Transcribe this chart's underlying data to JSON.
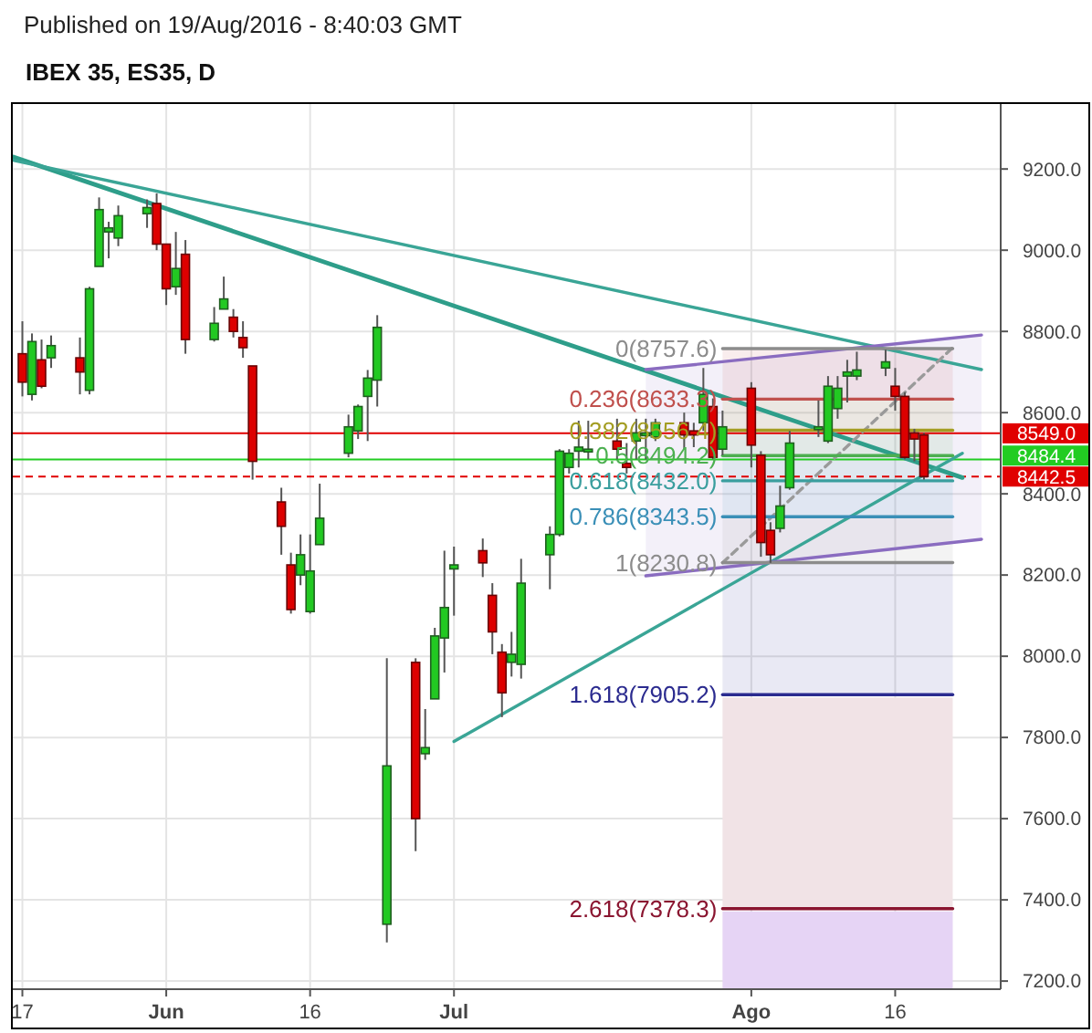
{
  "chart_data": {
    "type": "candlestick",
    "title": "IBEX 35, ES35, D",
    "annotations": [
      "Published on 19/Aug/2016 - 8:40:03 GMT"
    ],
    "x": [
      "2016-05-17",
      "2016-05-18",
      "2016-05-19",
      "2016-05-20",
      "2016-05-23",
      "2016-05-24",
      "2016-05-25",
      "2016-05-26",
      "2016-05-27",
      "2016-05-30",
      "2016-05-31",
      "2016-06-01",
      "2016-06-02",
      "2016-06-03",
      "2016-06-06",
      "2016-06-07",
      "2016-06-08",
      "2016-06-09",
      "2016-06-10",
      "2016-06-13",
      "2016-06-14",
      "2016-06-15",
      "2016-06-16",
      "2016-06-17",
      "2016-06-20",
      "2016-06-21",
      "2016-06-22",
      "2016-06-23",
      "2016-06-24",
      "2016-06-27",
      "2016-06-28",
      "2016-06-29",
      "2016-06-30",
      "2016-07-01",
      "2016-07-04",
      "2016-07-05",
      "2016-07-06",
      "2016-07-07",
      "2016-07-08",
      "2016-07-11",
      "2016-07-12",
      "2016-07-13",
      "2016-07-14",
      "2016-07-15",
      "2016-07-18",
      "2016-07-19",
      "2016-07-20",
      "2016-07-21",
      "2016-07-22",
      "2016-07-25",
      "2016-07-26",
      "2016-07-27",
      "2016-07-28",
      "2016-07-29",
      "2016-08-01",
      "2016-08-02",
      "2016-08-03",
      "2016-08-04",
      "2016-08-05",
      "2016-08-08",
      "2016-08-09",
      "2016-08-10",
      "2016-08-11",
      "2016-08-12",
      "2016-08-15",
      "2016-08-16",
      "2016-08-17",
      "2016-08-18",
      "2016-08-19"
    ],
    "ohlc": [
      [
        8745,
        8825,
        8640,
        8675
      ],
      [
        8645,
        8795,
        8630,
        8775
      ],
      [
        8730,
        8780,
        8660,
        8665
      ],
      [
        8735,
        8790,
        8710,
        8765
      ],
      [
        8735,
        8785,
        8645,
        8700
      ],
      [
        8655,
        8910,
        8645,
        8905
      ],
      [
        8960,
        9130,
        8960,
        9100
      ],
      [
        9045,
        9070,
        8980,
        9055
      ],
      [
        9030,
        9110,
        9010,
        9085
      ],
      [
        9090,
        9125,
        9055,
        9105
      ],
      [
        9115,
        9140,
        9000,
        9015
      ],
      [
        9015,
        9015,
        8865,
        8905
      ],
      [
        8910,
        9045,
        8890,
        8955
      ],
      [
        8990,
        9025,
        8745,
        8780
      ],
      [
        8780,
        8860,
        8775,
        8820
      ],
      [
        8855,
        8935,
        8855,
        8880
      ],
      [
        8835,
        8855,
        8785,
        8800
      ],
      [
        8785,
        8825,
        8735,
        8760
      ],
      [
        8715,
        8715,
        8435,
        8480
      ],
      [
        8380,
        8415,
        8250,
        8320
      ],
      [
        8225,
        8255,
        8105,
        8115
      ],
      [
        8200,
        8300,
        8175,
        8250
      ],
      [
        8110,
        8300,
        8105,
        8210
      ],
      [
        8275,
        8425,
        8275,
        8340
      ],
      [
        8500,
        8595,
        8490,
        8565
      ],
      [
        8555,
        8620,
        8535,
        8615
      ],
      [
        8640,
        8705,
        8530,
        8685
      ],
      [
        8680,
        8840,
        8615,
        8810
      ],
      [
        7340,
        7995,
        7295,
        7730
      ],
      [
        7985,
        7995,
        7520,
        7600
      ],
      [
        7760,
        7870,
        7745,
        7775
      ],
      [
        7895,
        8070,
        7895,
        8050
      ],
      [
        8045,
        8260,
        7960,
        8120
      ],
      [
        8215,
        8270,
        8100,
        8225
      ],
      [
        8260,
        8290,
        8195,
        8230
      ],
      [
        8150,
        8180,
        8005,
        8060
      ],
      [
        8010,
        8030,
        7850,
        7910
      ],
      [
        7985,
        8060,
        7950,
        8005
      ],
      [
        7980,
        8240,
        7945,
        8180
      ],
      [
        8250,
        8320,
        8165,
        8300
      ],
      [
        8300,
        8510,
        8295,
        8505
      ],
      [
        8465,
        8510,
        8450,
        8500
      ],
      [
        8505,
        8580,
        8465,
        8515
      ],
      [
        8505,
        8580,
        8485,
        8510
      ],
      [
        8530,
        8585,
        8485,
        8510
      ],
      [
        8475,
        8525,
        8450,
        8465
      ],
      [
        8530,
        8585,
        8485,
        8550
      ],
      [
        8545,
        8585,
        8485,
        8550
      ],
      [
        8540,
        8585,
        8530,
        8575
      ],
      [
        8575,
        8600,
        8510,
        8545
      ],
      [
        8555,
        8575,
        8515,
        8545
      ],
      [
        8575,
        8710,
        8555,
        8645
      ],
      [
        8615,
        8635,
        8485,
        8490
      ],
      [
        8510,
        8605,
        8495,
        8565
      ],
      [
        8660,
        8675,
        8465,
        8520
      ],
      [
        8495,
        8505,
        8245,
        8280
      ],
      [
        8310,
        8330,
        8230,
        8250
      ],
      [
        8315,
        8420,
        8305,
        8370
      ],
      [
        8415,
        8555,
        8410,
        8525
      ],
      [
        8560,
        8630,
        8540,
        8565
      ],
      [
        8530,
        8690,
        8525,
        8665
      ],
      [
        8610,
        8690,
        8585,
        8660
      ],
      [
        8690,
        8730,
        8625,
        8700
      ],
      [
        8690,
        8750,
        8680,
        8705
      ],
      [
        8710,
        8755,
        8690,
        8725
      ],
      [
        8665,
        8710,
        8605,
        8640
      ],
      [
        8640,
        8650,
        8485,
        8490
      ],
      [
        8550,
        8560,
        8480,
        8535
      ],
      [
        8545,
        8550,
        8435,
        8442.5
      ]
    ],
    "series": [
      {
        "type": "line",
        "color": "#2e9e8a",
        "x": [
          "2016-05-16",
          "2016-08-23"
        ],
        "values": [
          9230,
          8440
        ]
      },
      {
        "type": "line",
        "color": "#3aa596",
        "x": [
          "2016-05-16",
          "2016-08-25"
        ],
        "values": [
          9222,
          8706
        ]
      },
      {
        "type": "line",
        "color": "#3aa596",
        "x": [
          "2016-07-01",
          "2016-08-23"
        ],
        "values": [
          7790,
          8500
        ]
      },
      {
        "type": "line",
        "color": "#8a6cc0",
        "x": [
          "2016-07-21",
          "2016-08-25"
        ],
        "values": [
          8706,
          8791
        ],
        "lower": [
          8198,
          8288
        ],
        "upper": [
          8706,
          8791
        ]
      },
      {
        "type": "line",
        "color": "#8a6cc0",
        "x": [
          "2016-07-21",
          "2016-08-25"
        ],
        "values": [
          8198,
          8288
        ]
      },
      {
        "type": "line",
        "color": "#9a9a9a",
        "line_style": "dashed",
        "x": [
          "2016-07-29",
          "2016-08-22"
        ],
        "values": [
          8230,
          8760
        ]
      },
      {
        "type": "line",
        "name": "0(8757.6)",
        "color": "#8c8c8c",
        "x": [
          "2016-07-29",
          "2016-08-22"
        ],
        "values": [
          8757.6,
          8757.6
        ]
      },
      {
        "type": "line",
        "name": "0.236(8633.3)",
        "color": "#c0504d",
        "x": [
          "2016-07-29",
          "2016-08-22"
        ],
        "values": [
          8633.3,
          8633.3
        ],
        "lower": [
          8633.3,
          8633.3
        ],
        "upper": [
          8757.6,
          8757.6
        ]
      },
      {
        "type": "line",
        "name": "0.382(8556.4)",
        "color": "#a39d22",
        "x": [
          "2016-07-29",
          "2016-08-22"
        ],
        "values": [
          8556.4,
          8556.4
        ],
        "lower": [
          8556.4,
          8556.4
        ],
        "upper": [
          8633.3,
          8633.3
        ]
      },
      {
        "type": "line",
        "name": "0.5(8494.2)",
        "color": "#4caf50",
        "x": [
          "2016-07-29",
          "2016-08-22"
        ],
        "values": [
          8494.2,
          8494.2
        ],
        "lower": [
          8494.2,
          8494.2
        ],
        "upper": [
          8556.4,
          8556.4
        ]
      },
      {
        "type": "line",
        "name": "0.618(8432.0)",
        "color": "#3a9e9e",
        "x": [
          "2016-07-29",
          "2016-08-22"
        ],
        "values": [
          8432.0,
          8432.0
        ],
        "lower": [
          8432.0,
          8432.0
        ],
        "upper": [
          8494.2,
          8494.2
        ]
      },
      {
        "type": "line",
        "name": "0.786(8343.5)",
        "color": "#3a8fb7",
        "x": [
          "2016-07-29",
          "2016-08-22"
        ],
        "values": [
          8343.5,
          8343.5
        ],
        "lower": [
          8343.5,
          8343.5
        ],
        "upper": [
          8432.0,
          8432.0
        ]
      },
      {
        "type": "line",
        "name": "1(8230.8)",
        "color": "#8c8c8c",
        "x": [
          "2016-07-29",
          "2016-08-22"
        ],
        "values": [
          8230.8,
          8230.8
        ],
        "lower": [
          8230.8,
          8230.8
        ],
        "upper": [
          8343.5,
          8343.5
        ]
      },
      {
        "type": "line",
        "name": "1.618(7905.2)",
        "color": "#2b2b8f",
        "x": [
          "2016-07-29",
          "2016-08-22"
        ],
        "values": [
          7905.2,
          7905.2
        ],
        "lower": [
          7905.2,
          7905.2
        ],
        "upper": [
          8230.8,
          8230.8
        ]
      },
      {
        "type": "line",
        "name": "2.618(7378.3)",
        "color": "#8a1530",
        "x": [
          "2016-07-29",
          "2016-08-22"
        ],
        "values": [
          7378.3,
          7378.3
        ]
      }
    ],
    "bands": [
      {
        "axis": "y",
        "from": 7180,
        "to": 7378.3,
        "color": "#e6d4f5"
      },
      {
        "axis": "y",
        "from": 7378.3,
        "to": 7905.2,
        "color": "#f1e3e6"
      }
    ],
    "ref_lines": [
      {
        "axis": "y",
        "value": 8549.0,
        "label": "8549.0",
        "color": "#e00000"
      },
      {
        "axis": "y",
        "value": 8484.4,
        "label": "8484.4",
        "color": "#22cc22"
      },
      {
        "axis": "y",
        "value": 8442.5,
        "label": "8442.5",
        "color": "#e00000",
        "line_style": "dashed"
      }
    ],
    "xlim": [
      "2016-05-16",
      "2016-08-27"
    ],
    "xticks": [
      {
        "value": "2016-05-17",
        "label": "17"
      },
      {
        "value": "2016-06-01",
        "label": "Jun"
      },
      {
        "value": "2016-06-16",
        "label": "16"
      },
      {
        "value": "2016-07-01",
        "label": "Jul"
      },
      {
        "value": "2016-08-01",
        "label": "Ago"
      },
      {
        "value": "2016-08-16",
        "label": "16"
      }
    ],
    "ylim": [
      7180,
      9360
    ],
    "yticks": [
      {
        "value": 7200,
        "label": "7200.0"
      },
      {
        "value": 7400,
        "label": "7400.0"
      },
      {
        "value": 7600,
        "label": "7600.0"
      },
      {
        "value": 7800,
        "label": "7800.0"
      },
      {
        "value": 8000,
        "label": "8000.0"
      },
      {
        "value": 8200,
        "label": "8200.0"
      },
      {
        "value": 8400,
        "label": "8400.0"
      },
      {
        "value": 8600,
        "label": "8600.0"
      },
      {
        "value": 8800,
        "label": "8800.0"
      },
      {
        "value": 9000,
        "label": "9000.0"
      },
      {
        "value": 9200,
        "label": "9200.0"
      }
    ],
    "grid": true
  }
}
